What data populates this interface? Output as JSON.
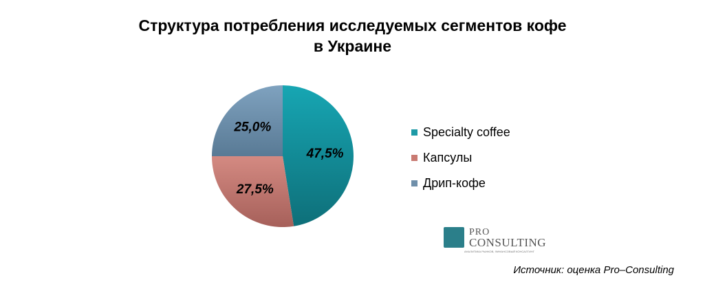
{
  "title_line1": "Структура потребления исследуемых сегментов кофе",
  "title_line2": "в Украине",
  "source": "Источник: оценка Pro–Consulting",
  "logo": {
    "pro": "PRO",
    "consulting": "CONSULTING",
    "tagline": "АНАЛИТИКА РЫНКОВ, ФИНАНСОВЫЙ КОНСАЛТИНГ"
  },
  "chart_data": {
    "type": "pie",
    "labels": [
      "Specialty coffee",
      "Капсулы",
      "Дрип-кофе"
    ],
    "values": [
      47.5,
      27.5,
      25.0
    ],
    "data_labels": [
      "47,5%",
      "27,5%",
      "25,0%"
    ],
    "colors": [
      "#1d9aa6",
      "#c97a72",
      "#6f8faa"
    ],
    "legend_position": "right"
  }
}
